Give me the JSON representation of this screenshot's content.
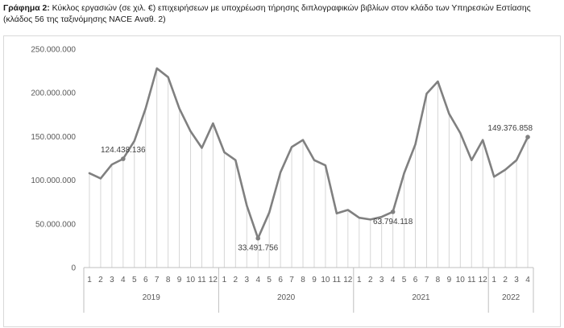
{
  "caption": {
    "prefix": "Γράφημα 2:",
    "text": " Κύκλος εργασιών (σε χιλ. €) επιχειρήσεων με υποχρέωση τήρησης διπλογραφικών βιβλίων στον κλάδο των Υπηρεσιών Εστίασης (κλάδος 56 της ταξινόμησης NACE Αναθ. 2)"
  },
  "chart_data": {
    "type": "line",
    "title": "Κύκλος εργασιών (σε χιλ. €) επιχειρήσεων με υποχρέωση τήρησης διπλογραφικών βιβλίων στον κλάδο των Υπηρεσιών Εστίασης (κλάδος 56 της ταξινόμησης NACE Αναθ. 2)",
    "categories": [
      "1",
      "2",
      "3",
      "4",
      "5",
      "6",
      "7",
      "8",
      "9",
      "10",
      "11",
      "12",
      "1",
      "2",
      "3",
      "4",
      "5",
      "6",
      "7",
      "8",
      "9",
      "10",
      "11",
      "12",
      "1",
      "2",
      "3",
      "4",
      "5",
      "6",
      "7",
      "8",
      "9",
      "10",
      "11",
      "12",
      "1",
      "2",
      "3",
      "4"
    ],
    "year_groups": [
      {
        "label": "2019",
        "count": 12
      },
      {
        "label": "2020",
        "count": 12
      },
      {
        "label": "2021",
        "count": 12
      },
      {
        "label": "2022",
        "count": 4
      }
    ],
    "series": [
      {
        "values": [
          108000000,
          102000000,
          118000000,
          124438136,
          145000000,
          182000000,
          228000000,
          218000000,
          182000000,
          156000000,
          137000000,
          165000000,
          132000000,
          123000000,
          71000000,
          33491756,
          63000000,
          109000000,
          138000000,
          146000000,
          123000000,
          117000000,
          62000000,
          66000000,
          57000000,
          55000000,
          58000000,
          63794118,
          108000000,
          141000000,
          199000000,
          213000000,
          176000000,
          154000000,
          123000000,
          146000000,
          104000000,
          112000000,
          123000000,
          149376858
        ]
      }
    ],
    "ylim": [
      0,
      250000000
    ],
    "yticks": [
      {
        "value": 0,
        "label": "0"
      },
      {
        "value": 50000000,
        "label": "50.000.000"
      },
      {
        "value": 100000000,
        "label": "100.000.000"
      },
      {
        "value": 150000000,
        "label": "150.000.000"
      },
      {
        "value": 200000000,
        "label": "200.000.000"
      },
      {
        "value": 250000000,
        "label": "250.000.000"
      }
    ],
    "annotations": [
      {
        "index": 3,
        "label": "124.438.136",
        "pos": "above"
      },
      {
        "index": 15,
        "label": "33.491.756",
        "pos": "below"
      },
      {
        "index": 27,
        "label": "63.794.118",
        "pos": "below"
      },
      {
        "index": 39,
        "label": "149.376.858",
        "pos": "above"
      }
    ],
    "color": "#808080",
    "drop_lines": true,
    "grid": false
  }
}
